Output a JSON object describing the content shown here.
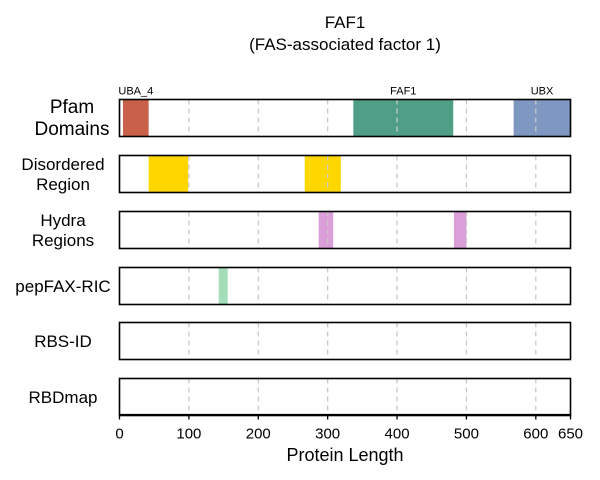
{
  "chart_data": {
    "type": "bar",
    "title": "FAF1",
    "subtitle": "(FAS-associated factor 1)",
    "xlabel": "Protein Length",
    "xlim": [
      0,
      650
    ],
    "xticks": [
      0,
      100,
      200,
      300,
      400,
      500,
      600,
      650
    ],
    "grid": "vertical dashed at 100-unit ticks",
    "tracks": [
      {
        "name": "Pfam Domains",
        "regions": [
          {
            "label": "UBA_4",
            "start": 5,
            "end": 42,
            "color": "#c9604a"
          },
          {
            "label": "FAF1",
            "start": 337,
            "end": 481,
            "color": "#4e9f86"
          },
          {
            "label": "UBX",
            "start": 568,
            "end": 650,
            "color": "#7f98c2"
          }
        ]
      },
      {
        "name": "Disordered Region",
        "regions": [
          {
            "start": 42,
            "end": 99,
            "color": "#ffd700"
          },
          {
            "start": 267,
            "end": 319,
            "color": "#ffd700"
          }
        ]
      },
      {
        "name": "Hydra Regions",
        "regions": [
          {
            "start": 287,
            "end": 308,
            "color": "#da9fd8"
          },
          {
            "start": 482,
            "end": 500,
            "color": "#da9fd8"
          }
        ]
      },
      {
        "name": "pepFAX-RIC",
        "regions": [
          {
            "start": 143,
            "end": 156,
            "color": "#a4ddba"
          }
        ]
      },
      {
        "name": "RBS-ID",
        "regions": []
      },
      {
        "name": "RBDmap",
        "regions": []
      }
    ]
  }
}
